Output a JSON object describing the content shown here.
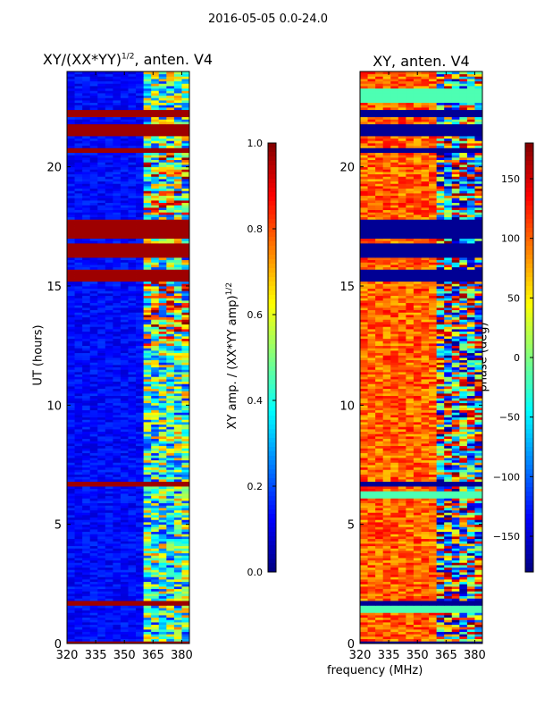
{
  "figure": {
    "suptitle": "2016-05-05 0.0-24.0",
    "xlabel": "frequency (MHz)"
  },
  "colorbars": [
    {
      "label_main": "XY amp. / (XX*YY amp)",
      "label_sup": "1/2",
      "vmin": 0.0,
      "vmax": 1.0,
      "ticks": [
        0.0,
        0.2,
        0.4,
        0.6,
        0.8,
        1.0
      ],
      "tick_labels": [
        "0.0",
        "0.2",
        "0.4",
        "0.6",
        "0.8",
        "1.0"
      ]
    },
    {
      "label_main": "phase (deg)",
      "vmin": -180,
      "vmax": 180,
      "ticks": [
        -150,
        -100,
        -50,
        0,
        50,
        100,
        150
      ],
      "tick_labels": [
        "−150",
        "−100",
        "−50",
        "0",
        "50",
        "100",
        "150"
      ]
    }
  ],
  "chart_data": [
    {
      "type": "heatmap",
      "title_main": "XY/(XX*YY)",
      "title_sup": "1/2",
      "title_tail": ", anten. V4",
      "xlabel": "",
      "ylabel": "UT (hours)",
      "xlim": [
        320,
        384
      ],
      "ylim": [
        0,
        24
      ],
      "xticks": [
        320,
        335,
        350,
        365,
        380
      ],
      "yticks": [
        0,
        5,
        10,
        15,
        20
      ],
      "value_range": [
        0.0,
        1.0
      ],
      "channel_mhz": 4,
      "hot_band_start_mhz": 360,
      "flagged_hour_ranges": [
        [
          0.0,
          0.1
        ],
        [
          1.65,
          1.8
        ],
        [
          6.6,
          6.8
        ],
        [
          15.2,
          15.7
        ],
        [
          16.2,
          16.8
        ],
        [
          17.0,
          17.8
        ],
        [
          20.6,
          20.8
        ],
        [
          21.3,
          21.8
        ],
        [
          22.1,
          22.4
        ]
      ],
      "weak_hour_ranges": [
        [
          12.5,
          15.2
        ],
        [
          19.5,
          20.5
        ],
        [
          18.0,
          19.0
        ]
      ]
    },
    {
      "type": "heatmap",
      "title_main": "XY, anten. V4",
      "xlabel": "frequency (MHz)",
      "ylabel": "",
      "xlim": [
        320,
        384
      ],
      "ylim": [
        0,
        24
      ],
      "xticks": [
        320,
        335,
        350,
        365,
        380
      ],
      "yticks": [
        0,
        5,
        10,
        15,
        20
      ],
      "value_range": [
        -180,
        180
      ],
      "channel_mhz": 4,
      "flagged_hour_ranges": [
        [
          0.0,
          0.1
        ],
        [
          1.65,
          1.8
        ],
        [
          6.6,
          6.8
        ],
        [
          15.2,
          15.7
        ],
        [
          16.2,
          16.8
        ],
        [
          17.0,
          17.8
        ],
        [
          20.6,
          20.8
        ],
        [
          21.3,
          21.8
        ],
        [
          22.1,
          22.4
        ]
      ],
      "zero_phase_hour_ranges": [
        [
          1.35,
          1.6
        ],
        [
          6.1,
          6.4
        ],
        [
          22.7,
          23.3
        ]
      ]
    }
  ]
}
